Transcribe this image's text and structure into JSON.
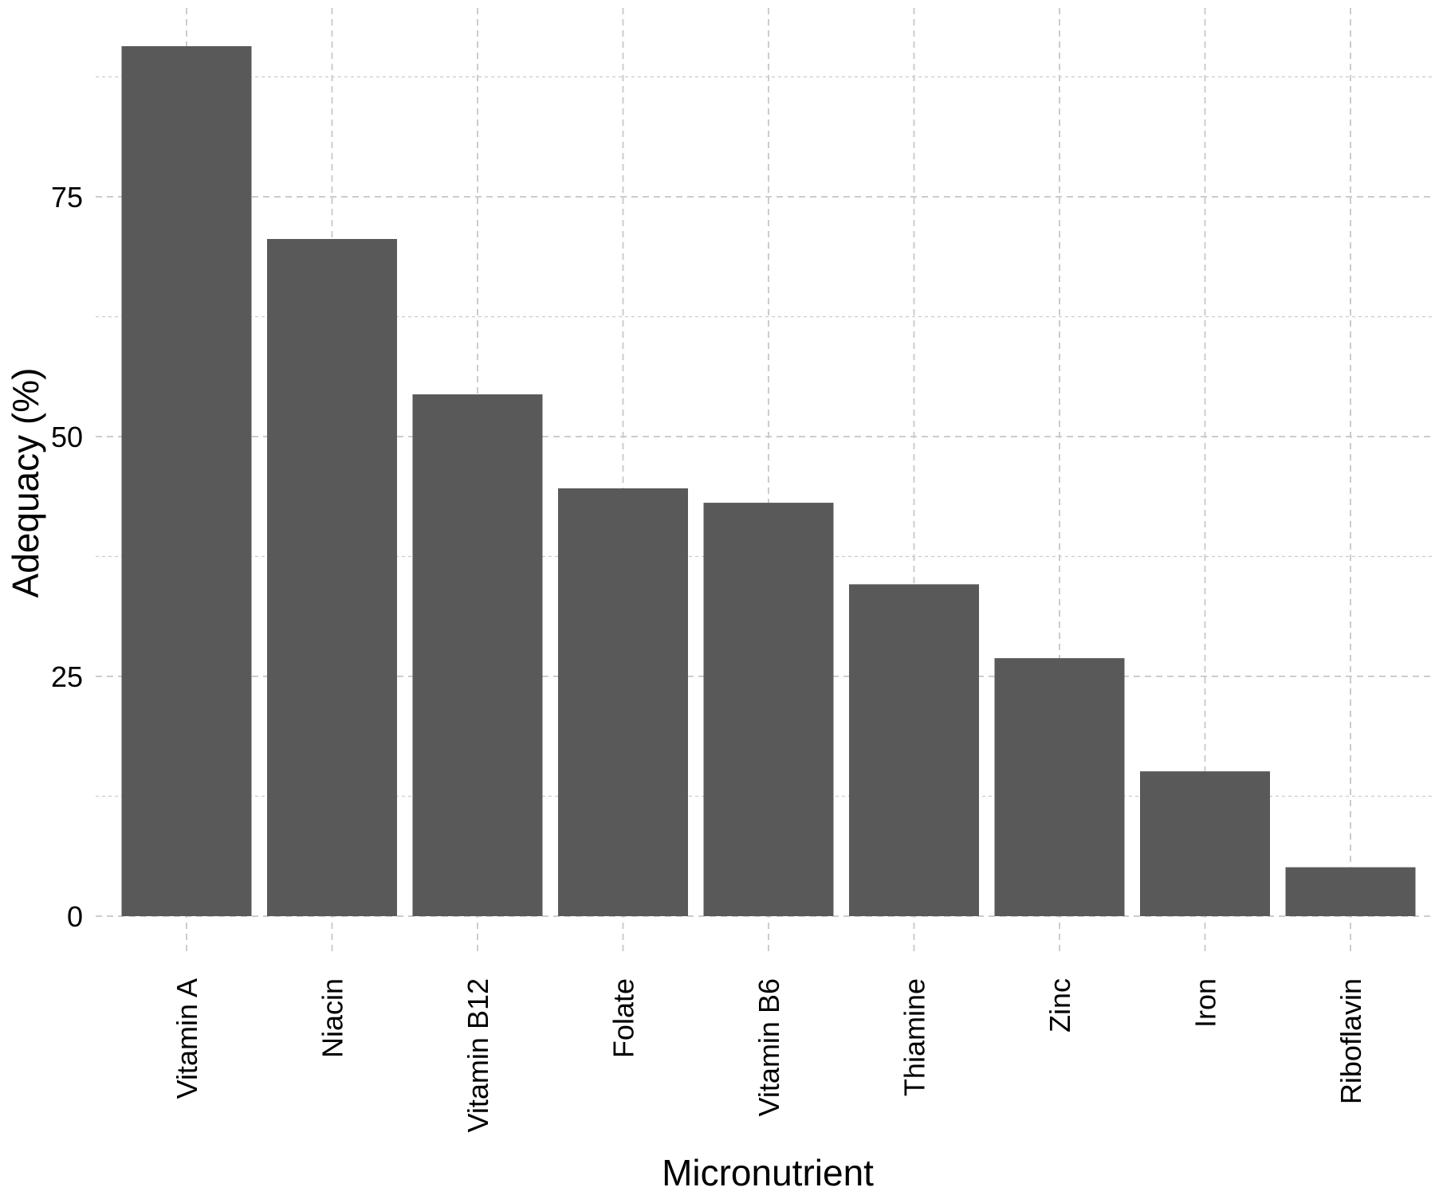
{
  "chart_data": {
    "type": "bar",
    "title": "",
    "xlabel": "Micronutrient",
    "ylabel": "Adequacy (%)",
    "categories": [
      "Vitamin A",
      "Niacin",
      "Vitamin B12",
      "Folate",
      "Vitamin B6",
      "Thiamine",
      "Zinc",
      "Iron",
      "Riboflavin"
    ],
    "values": [
      90.7,
      70.6,
      54.4,
      44.6,
      43.1,
      34.6,
      26.9,
      15.1,
      5.1
    ],
    "ylim": [
      0,
      93
    ],
    "yticks": [
      0,
      25,
      50,
      75
    ],
    "ytick_labels": [
      "0",
      "25",
      "50",
      "75"
    ],
    "x_tick_rotation": "vertical",
    "grid": {
      "major": true,
      "minor": true,
      "style": "dashed",
      "color": "#cccccc"
    },
    "bar_color": "#595959",
    "background": "#ffffff",
    "legend": "none"
  }
}
